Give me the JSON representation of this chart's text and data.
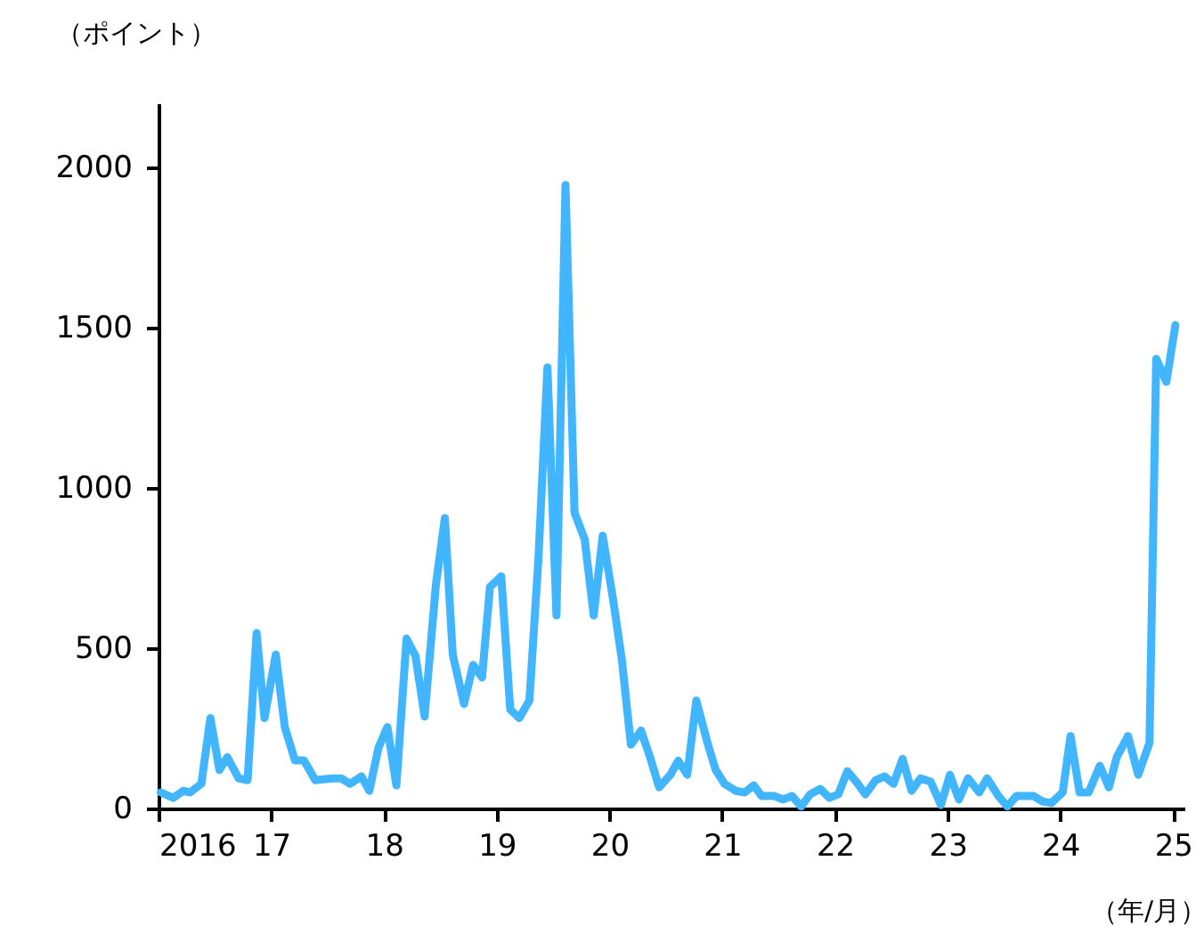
{
  "chart_data": {
    "type": "line",
    "ylabel": "（ポイント）",
    "xlabel": "（年/月）",
    "x": [
      2016.02,
      2016.13,
      2016.22,
      2016.28,
      2016.38,
      2016.46,
      2016.54,
      2016.61,
      2016.71,
      2016.79,
      2016.87,
      2016.94,
      2017.04,
      2017.12,
      2017.21,
      2017.29,
      2017.39,
      2017.54,
      2017.62,
      2017.7,
      2017.8,
      2017.87,
      2017.95,
      2018.03,
      2018.11,
      2018.2,
      2018.28,
      2018.36,
      2018.46,
      2018.54,
      2018.61,
      2018.71,
      2018.79,
      2018.87,
      2018.94,
      2019.04,
      2019.12,
      2019.2,
      2019.29,
      2019.37,
      2019.45,
      2019.53,
      2019.61,
      2019.69,
      2019.78,
      2019.86,
      2019.94,
      2020.03,
      2020.11,
      2020.19,
      2020.28,
      2020.36,
      2020.44,
      2020.54,
      2020.61,
      2020.69,
      2020.77,
      2020.87,
      2020.94,
      2021.02,
      2021.12,
      2021.2,
      2021.28,
      2021.35,
      2021.46,
      2021.54,
      2021.62,
      2021.7,
      2021.78,
      2021.87,
      2021.95,
      2022.03,
      2022.11,
      2022.19,
      2022.27,
      2022.36,
      2022.44,
      2022.52,
      2022.6,
      2022.68,
      2022.76,
      2022.85,
      2022.94,
      2023.02,
      2023.1,
      2023.18,
      2023.28,
      2023.35,
      2023.45,
      2023.53,
      2023.61,
      2023.69,
      2023.76,
      2023.84,
      2023.92,
      2024.02,
      2024.09,
      2024.17,
      2024.25,
      2024.35,
      2024.43,
      2024.5,
      2024.6,
      2024.69,
      2024.79,
      2024.85,
      2024.94,
      2025.02
    ],
    "values": [
      50,
      33,
      55,
      50,
      77,
      282,
      120,
      160,
      94,
      88,
      547,
      282,
      480,
      254,
      150,
      150,
      88,
      94,
      94,
      77,
      100,
      55,
      188,
      254,
      72,
      530,
      475,
      287,
      696,
      906,
      480,
      326,
      448,
      409,
      691,
      724,
      309,
      282,
      337,
      779,
      1376,
      602,
      1945,
      923,
      840,
      602,
      851,
      657,
      464,
      199,
      243,
      160,
      66,
      105,
      149,
      105,
      337,
      204,
      122,
      77,
      55,
      50,
      72,
      39,
      39,
      28,
      39,
      6,
      44,
      61,
      33,
      44,
      116,
      83,
      44,
      88,
      100,
      77,
      155,
      55,
      94,
      83,
      11,
      105,
      28,
      94,
      50,
      94,
      39,
      6,
      39,
      39,
      39,
      22,
      17,
      50,
      226,
      50,
      50,
      133,
      66,
      160,
      226,
      105,
      204,
      1403,
      1331,
      1508
    ],
    "color": "#41b6ff",
    "line_style": "solid",
    "marker": "none",
    "xlim": [
      2016,
      2025.1
    ],
    "ylim": [
      0,
      2200
    ],
    "xticks": [
      {
        "value": 2016,
        "label": "2016"
      },
      {
        "value": 2017,
        "label": "17"
      },
      {
        "value": 2018,
        "label": "18"
      },
      {
        "value": 2019,
        "label": "19"
      },
      {
        "value": 2020,
        "label": "20"
      },
      {
        "value": 2021,
        "label": "21"
      },
      {
        "value": 2022,
        "label": "22"
      },
      {
        "value": 2023,
        "label": "23"
      },
      {
        "value": 2024,
        "label": "24"
      },
      {
        "value": 2025,
        "label": "25"
      }
    ],
    "yticks": [
      0,
      500,
      1000,
      1500,
      2000
    ],
    "grid": false,
    "legend": false
  }
}
